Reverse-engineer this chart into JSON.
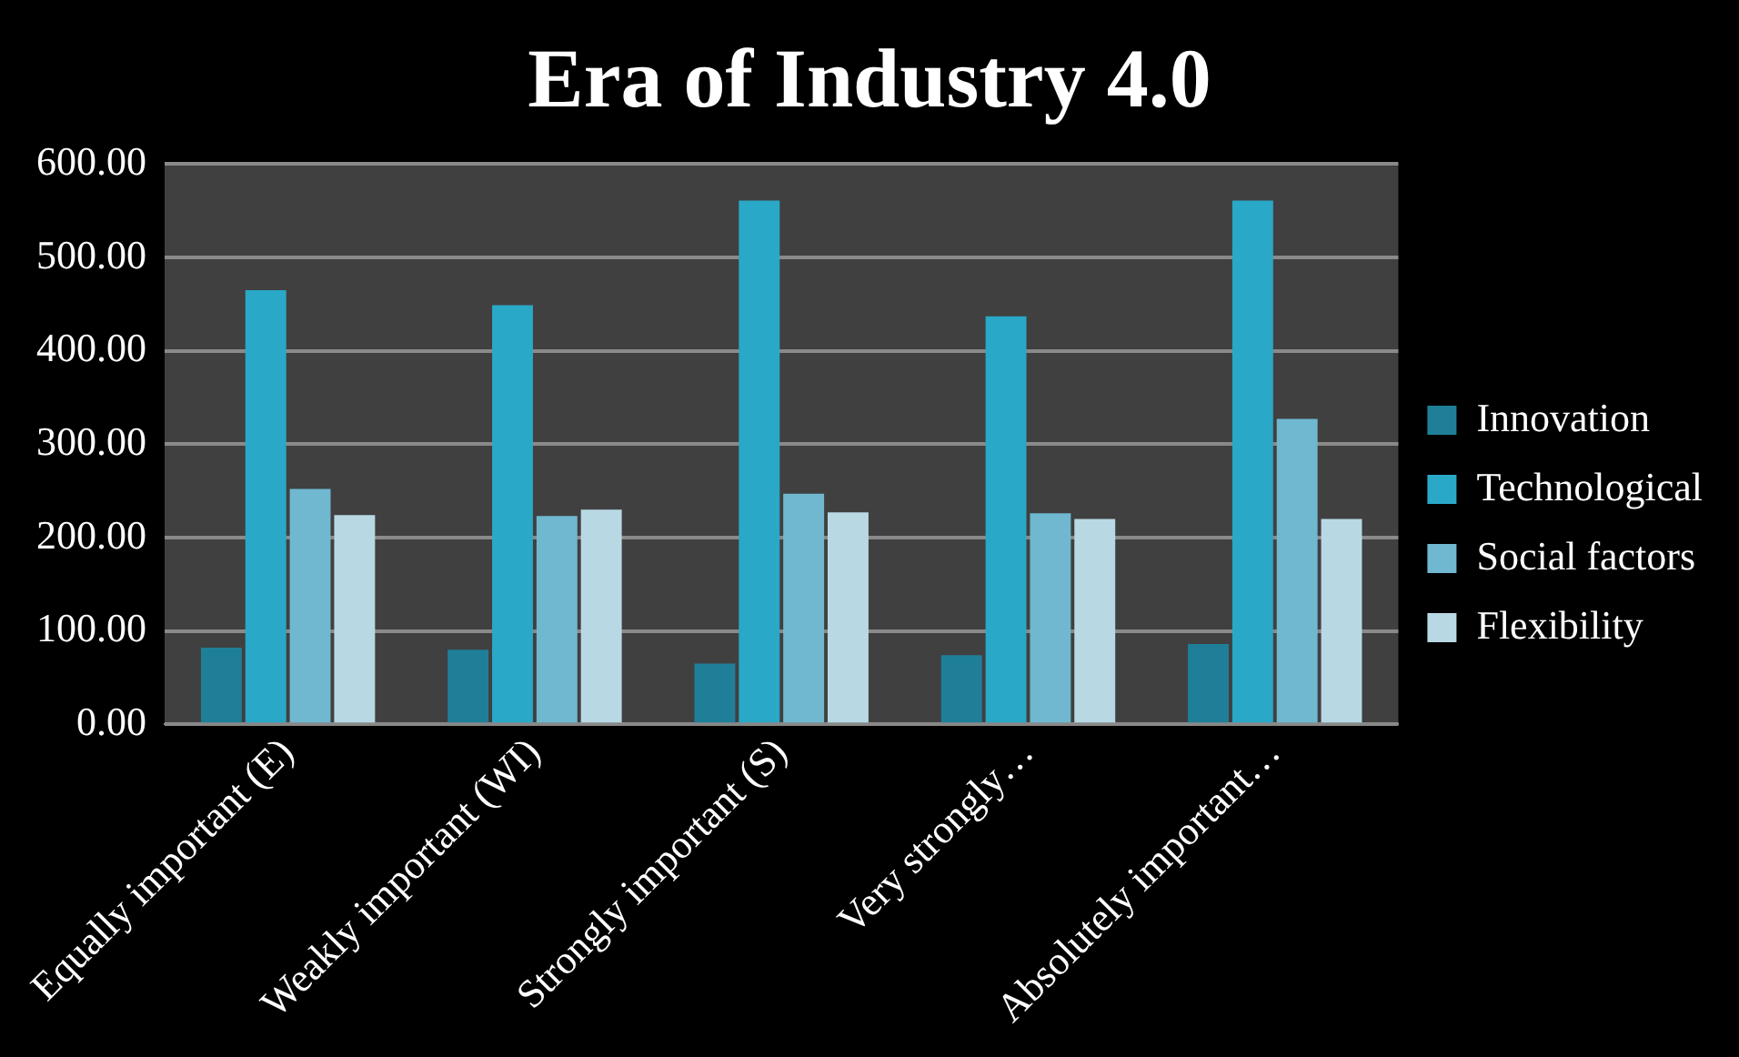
{
  "chart_data": {
    "type": "bar",
    "title": "Era of Industry 4.0",
    "categories": [
      "Equally important (E)",
      "Weakly important (WI)",
      "Strongly important (S)",
      "Very strongly…",
      "Absolutely important…"
    ],
    "series": [
      {
        "name": "Innovation",
        "color": "#1f7f99",
        "values": [
          82,
          80,
          65,
          74,
          86
        ]
      },
      {
        "name": "Technological",
        "color": "#2aa8c8",
        "values": [
          465,
          449,
          561,
          437,
          561
        ]
      },
      {
        "name": "Social factors",
        "color": "#6fb8d0",
        "values": [
          252,
          223,
          247,
          226,
          327
        ]
      },
      {
        "name": "Flexibility",
        "color": "#b8d8e4",
        "values": [
          224,
          230,
          227,
          220,
          220
        ]
      }
    ],
    "ylim": [
      0,
      600
    ],
    "yticks": [
      {
        "value": 0,
        "label": "0.00"
      },
      {
        "value": 100,
        "label": "100.00"
      },
      {
        "value": 200,
        "label": "200.00"
      },
      {
        "value": 300,
        "label": "300.00"
      },
      {
        "value": 400,
        "label": "400.00"
      },
      {
        "value": 500,
        "label": "500.00"
      },
      {
        "value": 600,
        "label": "600.00"
      }
    ],
    "grid": "y",
    "legend": "right"
  }
}
